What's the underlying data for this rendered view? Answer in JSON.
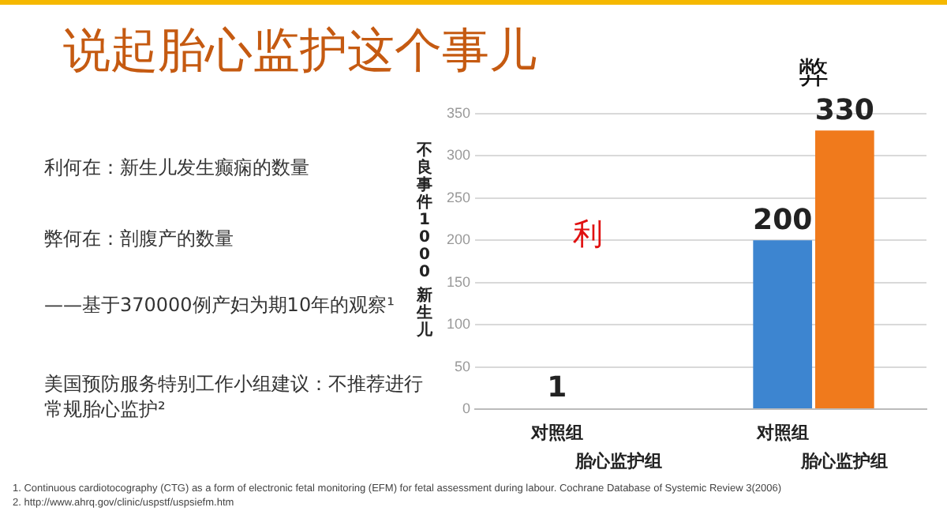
{
  "chart_data": {
    "type": "bar",
    "title": "说起胎心监护这个事儿",
    "ylabel": "不良事件1000 新生儿",
    "categories": [
      "利",
      "弊"
    ],
    "series": [
      {
        "name": "对照组",
        "colors": [
          "#c8c8c8",
          "#3d85d0"
        ],
        "values": [
          1,
          200
        ]
      },
      {
        "name": "胎心监护组",
        "color": "#f07a1c",
        "values": [
          null,
          330
        ]
      }
    ],
    "ylim": [
      0,
      350
    ],
    "yticks": [
      0,
      50,
      100,
      150,
      200,
      250,
      300,
      350
    ],
    "grid": "y",
    "legend": false,
    "data_labels": true,
    "annotations": [
      "利何在：新生儿发生癫痫的数量",
      "弊何在：剖腹产的数量",
      "——基于370000例产妇为期10年的观察¹",
      "美国预防服务特别工作小组建议：不推荐进行常规胎心监护²",
      "1. Continuous cardiotocography (CTG) as a form of electronic fetal monitoring (EFM) for fetal assessment during labour. Cochrane Database of Systemic Review 3(2006)",
      "2. http://www.ahrq.gov/clinic/uspstf/uspsiefm.htm"
    ]
  }
}
